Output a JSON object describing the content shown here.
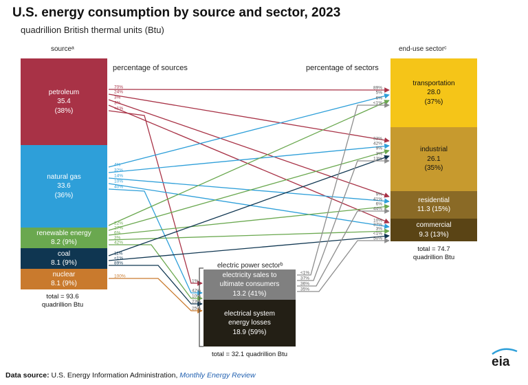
{
  "title": "U.S. energy consumption by source and sector, 2023",
  "subtitle": "quadrillion British thermal units (Btu)",
  "headers": {
    "source": "sourceᵃ",
    "end_use": "end-use sectorᶜ",
    "pct_sources": "percentage of sources",
    "pct_sectors": "percentage of sectors",
    "electric": "electric power sectorᵇ"
  },
  "sources": [
    {
      "name": "petroleum",
      "value": "35.4",
      "pct": "(38%)",
      "color": "#a83246"
    },
    {
      "name": "natural gas",
      "value": "33.6",
      "pct": "(36%)",
      "color": "#2e9fd9"
    },
    {
      "name": "renewable energy",
      "value": "8.2 (9%)",
      "color": "#6aa84f"
    },
    {
      "name": "coal",
      "value": "8.1 (9%)",
      "color": "#0f3651"
    },
    {
      "name": "nuclear",
      "value": "8.1 (9%)",
      "color": "#c97a2d"
    }
  ],
  "sectors": [
    {
      "name": "transportation",
      "value": "28.0",
      "pct": "(37%)",
      "color": "#f5c518"
    },
    {
      "name": "industrial",
      "value": "26.1",
      "pct": "(35%)",
      "color": "#c79a2e"
    },
    {
      "name": "residential",
      "value": "11.3 (15%)",
      "color": "#8a6a26"
    },
    {
      "name": "commercial",
      "value": "9.3 (13%)",
      "color": "#5a4415"
    }
  ],
  "electric": {
    "retail_line1": "electricity sales to",
    "retail_line2": "ultimate consumers",
    "retail_value": "13.2 (41%)",
    "loss_line1": "electrical system",
    "loss_line2": "energy losses",
    "loss_value": "18.9 (59%)",
    "total": "total = 32.1 quadrillion Btu",
    "retail_color": "#808080",
    "loss_color": "#231f15"
  },
  "source_total": {
    "line1": "total = 93.6",
    "line2": "quadrillion Btu"
  },
  "sector_total": {
    "line1": "total = 74.7",
    "line2": "quadrillion Btu"
  },
  "flow_labels": {
    "petroleum": [
      "70%",
      "24%",
      "3%",
      "3%",
      "<1%"
    ],
    "natural_gas": [
      "4%",
      "32%",
      "14%",
      "10%",
      "40%"
    ],
    "renewable": [
      "22%",
      "27%",
      "6%",
      "3%",
      "42%"
    ],
    "coal": [
      "11%",
      "<1%",
      "89%"
    ],
    "nuclear": [
      "100%"
    ],
    "transportation": [
      "89%",
      "5%",
      "6%",
      "<1%"
    ],
    "industrial": [
      "33%",
      "42%",
      "9%",
      "3%",
      "13%"
    ],
    "residential": [
      "9%",
      "41%",
      "6%",
      "44%"
    ],
    "commercial": [
      "10%",
      "37%",
      "3%",
      "<1%",
      "50%"
    ],
    "electric_in": [
      "1%",
      "42%",
      "10%",
      "23%",
      "25%"
    ],
    "electric_out": [
      "<1%",
      "37%",
      "36%",
      "35%"
    ]
  },
  "footer": {
    "label": "Data source:",
    "text": " U.S. Energy Information Administration, ",
    "link": "Monthly Energy Review"
  },
  "logo": "eia"
}
